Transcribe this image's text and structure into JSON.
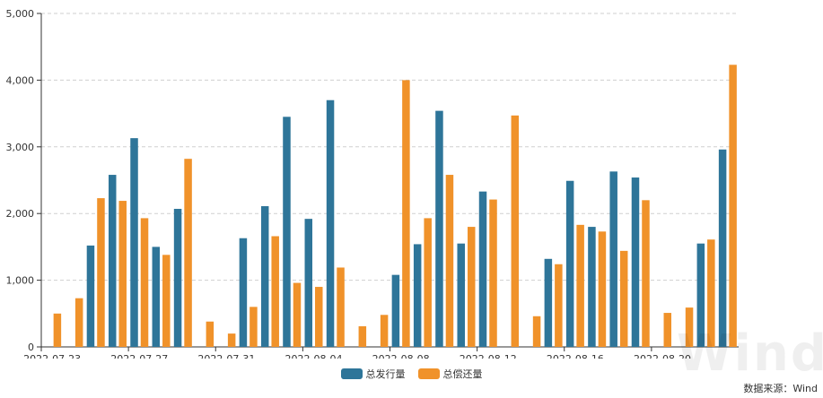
{
  "chart_data": {
    "type": "bar",
    "categories": [
      "2022-07-23",
      "2022-07-24",
      "2022-07-25",
      "2022-07-26",
      "2022-07-27",
      "2022-07-28",
      "2022-07-29",
      "2022-07-30",
      "2022-07-31",
      "2022-08-01",
      "2022-08-02",
      "2022-08-03",
      "2022-08-04",
      "2022-08-05",
      "2022-08-06",
      "2022-08-07",
      "2022-08-08",
      "2022-08-09",
      "2022-08-10",
      "2022-08-11",
      "2022-08-12",
      "2022-08-13",
      "2022-08-14",
      "2022-08-15",
      "2022-08-16",
      "2022-08-17",
      "2022-08-18",
      "2022-08-19",
      "2022-08-20",
      "2022-08-21",
      "2022-08-22",
      "2022-08-23"
    ],
    "tick_labels": [
      "2022-07-23",
      "2022-07-27",
      "2022-07-31",
      "2022-08-04",
      "2022-08-08",
      "2022-08-12",
      "2022-08-16",
      "2022-08-20"
    ],
    "series": [
      {
        "name": "总发行量",
        "color": "#2e7599",
        "values": [
          0,
          0,
          1520,
          2580,
          3130,
          1500,
          2070,
          0,
          0,
          1630,
          2110,
          3450,
          1920,
          3700,
          0,
          0,
          1080,
          1540,
          3540,
          1550,
          2330,
          0,
          0,
          1320,
          2490,
          1800,
          2630,
          2540,
          0,
          0,
          1550,
          2960
        ]
      },
      {
        "name": "总偿还量",
        "color": "#f0922a",
        "values": [
          500,
          730,
          2230,
          2190,
          1930,
          1380,
          2820,
          380,
          200,
          600,
          1660,
          960,
          900,
          1190,
          310,
          480,
          4000,
          1930,
          2580,
          1800,
          2210,
          3470,
          460,
          1240,
          1830,
          1730,
          1440,
          2200,
          510,
          590,
          1610,
          4230
        ]
      }
    ],
    "ylim": [
      0,
      5000
    ],
    "yticks": [
      "0",
      "1,000",
      "2,000",
      "3,000",
      "4,000",
      "5,000"
    ],
    "grid": true,
    "legend_position": "bottom-center"
  },
  "source_text": "数据来源：Wind",
  "watermark_text": "Wind"
}
